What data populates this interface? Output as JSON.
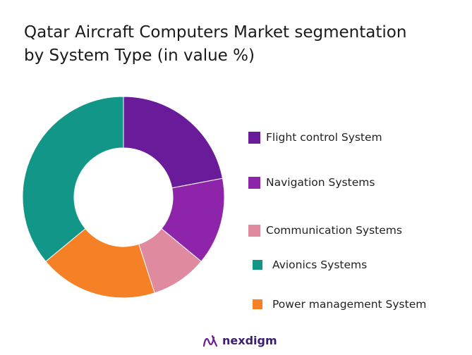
{
  "title_line1": "Qatar Aircraft Computers Market segmentation",
  "title_line2": "by System Type (in value %)",
  "chart_data": {
    "type": "pie",
    "variant": "donut",
    "title": "Qatar Aircraft Computers Market segmentation by System Type (in value %)",
    "categories": [
      "Flight control  System",
      "Navigation Systems",
      "Communication Systems",
      "Avionics  Systems",
      "Power management System"
    ],
    "values": [
      22,
      14,
      9,
      36,
      19
    ],
    "colors": [
      "#6a1b9a",
      "#8e24aa",
      "#e08aa0",
      "#119687",
      "#f58025"
    ],
    "legend_position": "right"
  },
  "legend": [
    {
      "label": "Flight control  System",
      "color": "#6a1b9a"
    },
    {
      "label": "Navigation Systems",
      "color": "#8e24aa"
    },
    {
      "label": "Communication Systems",
      "color": "#e08aa0"
    },
    {
      "label": "Avionics  Systems",
      "color": "#119687"
    },
    {
      "label": "Power management System",
      "color": "#f58025"
    }
  ],
  "logo_text": "nexdigm"
}
